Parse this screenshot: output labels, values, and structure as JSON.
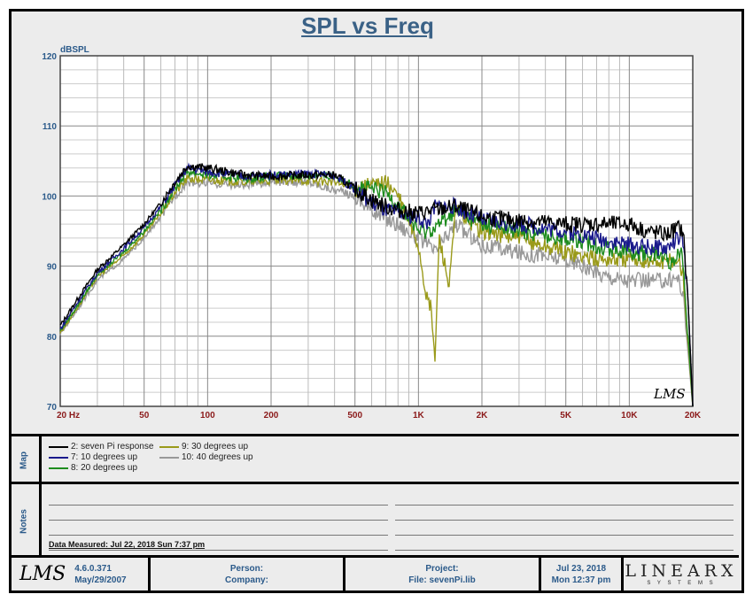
{
  "title": "SPL vs Freq",
  "chart_data": {
    "type": "line",
    "title": "SPL vs Freq",
    "ylabel": "dBSPL",
    "xlabel": "Hz",
    "xscale": "log",
    "xlim": [
      20,
      20000
    ],
    "ylim": [
      70,
      120
    ],
    "grid": true,
    "y_ticks": [
      "70",
      "80",
      "90",
      "100",
      "110",
      "120"
    ],
    "x_ticks": [
      {
        "v": 20,
        "l": "20  Hz"
      },
      {
        "v": 50,
        "l": "50"
      },
      {
        "v": 100,
        "l": "100"
      },
      {
        "v": 200,
        "l": "200"
      },
      {
        "v": 500,
        "l": "500"
      },
      {
        "v": 1000,
        "l": "1K"
      },
      {
        "v": 2000,
        "l": "2K"
      },
      {
        "v": 5000,
        "l": "5K"
      },
      {
        "v": 10000,
        "l": "10K"
      },
      {
        "v": 20000,
        "l": "20K"
      }
    ],
    "watermark": "LMS",
    "series": [
      {
        "name": "2: seven Pi response",
        "color": "#000000",
        "x": [
          20,
          25,
          30,
          40,
          50,
          60,
          70,
          80,
          100,
          150,
          200,
          300,
          400,
          500,
          600,
          700,
          800,
          1000,
          1200,
          1500,
          2000,
          3000,
          5000,
          7000,
          10000,
          12000,
          15000,
          17000,
          18000,
          19000,
          20000
        ],
        "y": [
          81.5,
          86,
          89.5,
          93,
          96,
          99,
          102,
          104.3,
          104,
          103,
          102.8,
          103,
          103,
          101,
          99.5,
          98.5,
          98,
          97.5,
          98,
          98.5,
          97,
          96.5,
          96,
          96,
          96,
          95,
          94.5,
          95.5,
          95,
          85,
          70
        ]
      },
      {
        "name": "7: 10 degrees up",
        "color": "#1a1a8c",
        "x": [
          20,
          25,
          30,
          40,
          50,
          60,
          70,
          80,
          100,
          150,
          200,
          300,
          400,
          500,
          600,
          700,
          800,
          1000,
          1100,
          1200,
          1500,
          2000,
          3000,
          5000,
          7000,
          10000,
          15000,
          17000,
          18000,
          19000,
          20000
        ],
        "y": [
          81,
          85.5,
          89,
          92.5,
          95.5,
          98.5,
          101.5,
          104,
          103.5,
          102.8,
          103,
          103.2,
          103,
          101,
          99,
          98,
          97.5,
          97,
          96,
          98.5,
          98.5,
          96.5,
          96,
          95,
          94,
          93,
          92.5,
          94,
          93.5,
          85,
          70
        ]
      },
      {
        "name": "8: 20 degrees up",
        "color": "#1e8c1e",
        "x": [
          20,
          25,
          30,
          40,
          50,
          60,
          70,
          80,
          100,
          150,
          200,
          300,
          400,
          500,
          700,
          800,
          1000,
          1100,
          1200,
          1500,
          2000,
          3000,
          5000,
          7000,
          10000,
          15000,
          16000,
          17000,
          18000,
          20000
        ],
        "y": [
          80.8,
          85,
          88.8,
          92,
          95,
          98,
          101,
          103.5,
          103,
          102.5,
          102.8,
          103,
          102.8,
          101.5,
          100.5,
          99,
          95,
          95,
          95.5,
          98,
          96,
          95,
          94,
          93,
          92,
          91.5,
          90,
          92.5,
          91,
          70
        ]
      },
      {
        "name": "9: 30 degrees up",
        "color": "#9a9a1a",
        "x": [
          20,
          25,
          30,
          40,
          50,
          60,
          70,
          80,
          100,
          150,
          200,
          300,
          400,
          500,
          700,
          800,
          1000,
          1100,
          1150,
          1200,
          1250,
          1300,
          1400,
          1500,
          2000,
          3000,
          5000,
          7000,
          10000,
          15000,
          17000,
          18000,
          20000
        ],
        "y": [
          80.5,
          84.8,
          88.5,
          91.5,
          94.5,
          97.5,
          100.5,
          102.5,
          102.3,
          102,
          102.2,
          102.2,
          102,
          101,
          102,
          100,
          93,
          85,
          84,
          76,
          94,
          92,
          87,
          98,
          95,
          94,
          92,
          91,
          91,
          90.5,
          91,
          89,
          70
        ]
      },
      {
        "name": "10: 40 degrees up",
        "color": "#999999",
        "x": [
          20,
          25,
          30,
          40,
          50,
          60,
          70,
          80,
          100,
          150,
          200,
          300,
          500,
          600,
          800,
          1000,
          1200,
          1500,
          2000,
          3000,
          5000,
          7000,
          10000,
          15000,
          17000,
          18000,
          20000
        ],
        "y": [
          80.3,
          84.5,
          88,
          91,
          94,
          97,
          100,
          102,
          101.8,
          101.5,
          102,
          102,
          100,
          98,
          96,
          94,
          92,
          96,
          93,
          92,
          91,
          89,
          88,
          88,
          88.5,
          86,
          70
        ]
      }
    ]
  },
  "map": {
    "label": "Map"
  },
  "notes": {
    "label": "Notes",
    "measured": "Data Measured: Jul 22, 2018  Sun  7:37 pm"
  },
  "footer": {
    "logo": "LMS",
    "version": "4.6.0.371",
    "version_date": "May/29/2007",
    "person": "Person:",
    "company": "Company:",
    "project": "Project:",
    "file": "File: sevenPi.lib",
    "date": "Jul 23, 2018",
    "time": "Mon 12:37 pm",
    "brand": "LINEARX",
    "brand_sub": "S Y S T E M S"
  }
}
